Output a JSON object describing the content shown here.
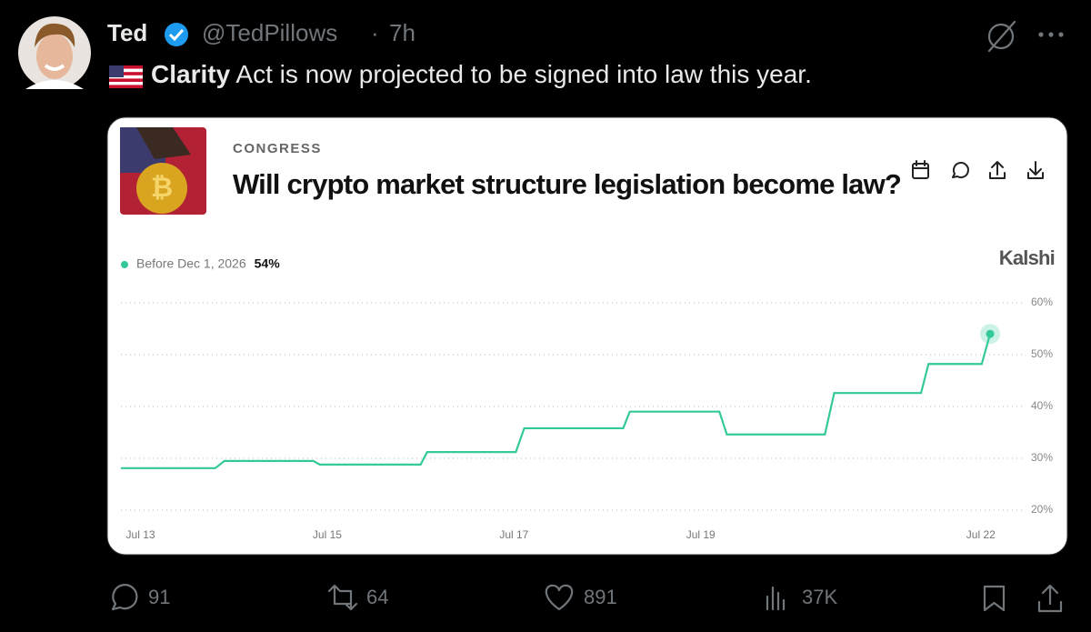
{
  "tweet": {
    "name": "Ted",
    "handle": "@TedPillows",
    "time": "7h",
    "text_bold": "Clarity",
    "text": "Act is now projected to be signed into law this year.",
    "replies": "91",
    "reposts": "64",
    "likes": "891",
    "views": "37K"
  },
  "card": {
    "category": "CONGRESS",
    "title": "Will crypto market structure legislation become law?",
    "brand": "Kalshi"
  },
  "chart_data": {
    "type": "line",
    "x": [
      12.79,
      13.8,
      13.9,
      14.85,
      14.92,
      16.0,
      16.07,
      17.02,
      17.11,
      18.17,
      18.24,
      19.2,
      19.28,
      20.33,
      20.43,
      21.36,
      21.44,
      22.01,
      22.1
    ],
    "series": [
      {
        "name": "Before Dec 1, 2026",
        "color": "#34c99a",
        "value_label": "54%",
        "values": [
          28.1,
          28.1,
          29.5,
          29.5,
          28.8,
          28.8,
          31.2,
          31.2,
          35.8,
          35.8,
          39,
          39,
          34.6,
          34.6,
          42.6,
          42.6,
          48.2,
          48.2,
          54
        ]
      }
    ],
    "xlim": [
      12.79,
      22.45
    ],
    "xticks": [
      {
        "value": 13,
        "label": "Jul 13"
      },
      {
        "value": 15,
        "label": "Jul 15"
      },
      {
        "value": 17,
        "label": "Jul 17"
      },
      {
        "value": 19,
        "label": "Jul 19"
      },
      {
        "value": 22,
        "label": "Jul 22"
      }
    ],
    "ylim": [
      18,
      62
    ],
    "yticks": [
      {
        "value": 20,
        "label": "20%"
      },
      {
        "value": 30,
        "label": "30%"
      },
      {
        "value": 40,
        "label": "40%"
      },
      {
        "value": 50,
        "label": "50%"
      },
      {
        "value": 60,
        "label": "60%"
      }
    ],
    "grid": true
  }
}
